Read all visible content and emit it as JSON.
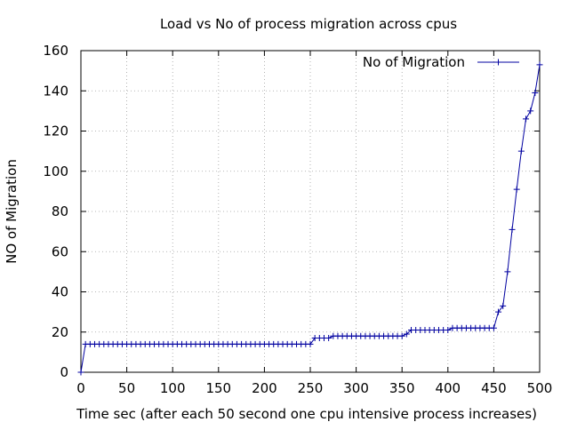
{
  "chart_data": {
    "type": "line",
    "title": "Load vs No of process migration across cpus",
    "xlabel": "Time sec (after each 50 second one cpu intensive process increases)",
    "ylabel": "NO of Migration",
    "xlim": [
      0,
      500
    ],
    "ylim": [
      0,
      160
    ],
    "xticks": [
      0,
      50,
      100,
      150,
      200,
      250,
      300,
      350,
      400,
      450,
      500
    ],
    "yticks": [
      0,
      20,
      40,
      60,
      80,
      100,
      120,
      140,
      160
    ],
    "grid": true,
    "legend_position": "top-right",
    "series": [
      {
        "name": "No of Migration",
        "color": "#0000a0",
        "marker": "plus",
        "x": [
          0,
          5,
          10,
          15,
          20,
          25,
          30,
          35,
          40,
          45,
          50,
          55,
          60,
          65,
          70,
          75,
          80,
          85,
          90,
          95,
          100,
          105,
          110,
          115,
          120,
          125,
          130,
          135,
          140,
          145,
          150,
          155,
          160,
          165,
          170,
          175,
          180,
          185,
          190,
          195,
          200,
          205,
          210,
          215,
          220,
          225,
          230,
          235,
          240,
          245,
          250,
          255,
          260,
          265,
          270,
          275,
          280,
          285,
          290,
          295,
          300,
          305,
          310,
          315,
          320,
          325,
          330,
          335,
          340,
          345,
          350,
          355,
          360,
          365,
          370,
          375,
          380,
          385,
          390,
          395,
          400,
          405,
          410,
          415,
          420,
          425,
          430,
          435,
          440,
          445,
          450,
          455,
          460,
          465,
          470,
          475,
          480,
          485,
          490,
          495,
          500
        ],
        "y": [
          0,
          14,
          14,
          14,
          14,
          14,
          14,
          14,
          14,
          14,
          14,
          14,
          14,
          14,
          14,
          14,
          14,
          14,
          14,
          14,
          14,
          14,
          14,
          14,
          14,
          14,
          14,
          14,
          14,
          14,
          14,
          14,
          14,
          14,
          14,
          14,
          14,
          14,
          14,
          14,
          14,
          14,
          14,
          14,
          14,
          14,
          14,
          14,
          14,
          14,
          14,
          17,
          17,
          17,
          17,
          18,
          18,
          18,
          18,
          18,
          18,
          18,
          18,
          18,
          18,
          18,
          18,
          18,
          18,
          18,
          18,
          19,
          21,
          21,
          21,
          21,
          21,
          21,
          21,
          21,
          21,
          22,
          22,
          22,
          22,
          22,
          22,
          22,
          22,
          22,
          22,
          30,
          33,
          50,
          71,
          91,
          110,
          126,
          130,
          139,
          153
        ]
      }
    ]
  }
}
